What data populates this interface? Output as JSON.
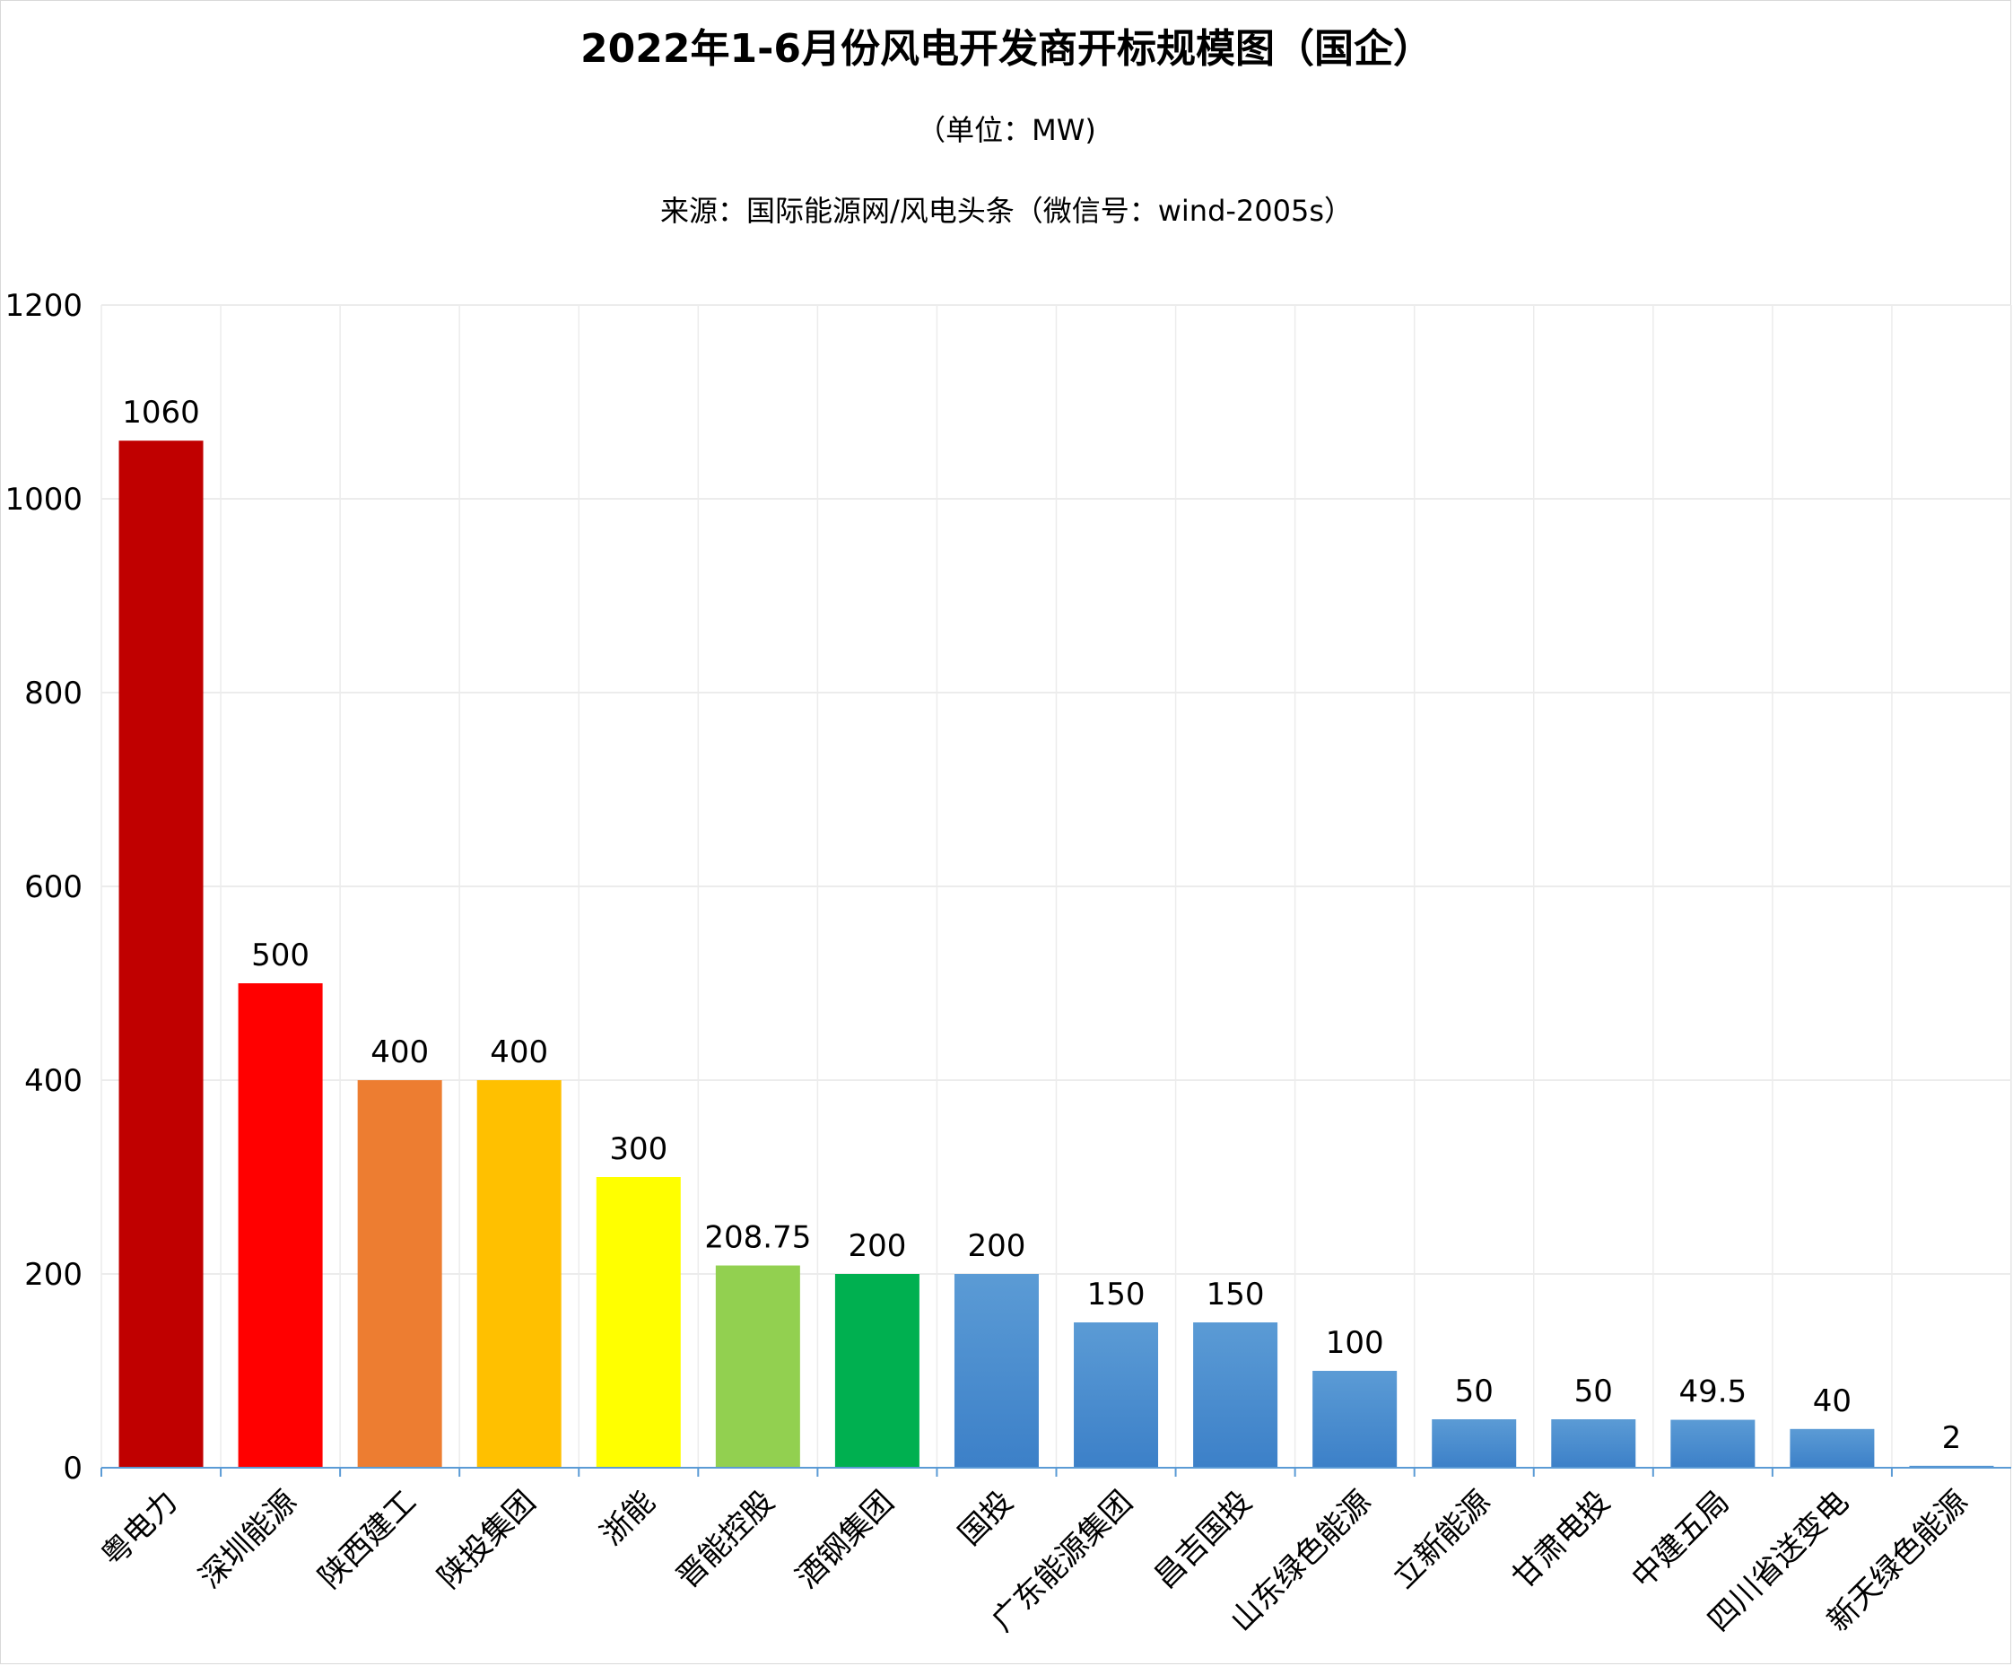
{
  "chart_data": {
    "type": "bar",
    "title": "2022年1-6月份风电开发商开标规模图（国企）",
    "subtitle": "（单位：MW)",
    "source": "来源：国际能源网/风电头条（微信号：wind-2005s）",
    "categories": [
      "粤电力",
      "深圳能源",
      "陕西建工",
      "陕投集团",
      "浙能",
      "晋能控股",
      "酒钢集团",
      "国投",
      "广东能源集团",
      "昌吉国投",
      "山东绿色能源",
      "立新能源",
      "甘肃电投",
      "中建五局",
      "四川省送变电",
      "新天绿色能源"
    ],
    "values": [
      1060,
      500,
      400,
      400,
      300,
      208.75,
      200,
      200,
      150,
      150,
      100,
      50,
      50,
      49.5,
      40,
      2
    ],
    "value_labels": [
      "1060",
      "500",
      "400",
      "400",
      "300",
      "208.75",
      "200",
      "200",
      "150",
      "150",
      "100",
      "50",
      "50",
      "49.5",
      "40",
      "2"
    ],
    "colors": [
      "#c00000",
      "#ff0000",
      "#ed7d31",
      "#ffc000",
      "#ffff00",
      "#92d050",
      "#00b050",
      "#5b9bd5",
      "#5b9bd5",
      "#5b9bd5",
      "#5b9bd5",
      "#5b9bd5",
      "#5b9bd5",
      "#5b9bd5",
      "#5b9bd5",
      "#5b9bd5"
    ],
    "ylim": [
      0,
      1200
    ],
    "yticks": [
      0,
      200,
      400,
      600,
      800,
      1000,
      1200
    ],
    "ytick_labels": [
      "0",
      "200",
      "400",
      "600",
      "800",
      "1000",
      "1200"
    ],
    "grid": true,
    "xlabel": "",
    "ylabel": ""
  }
}
